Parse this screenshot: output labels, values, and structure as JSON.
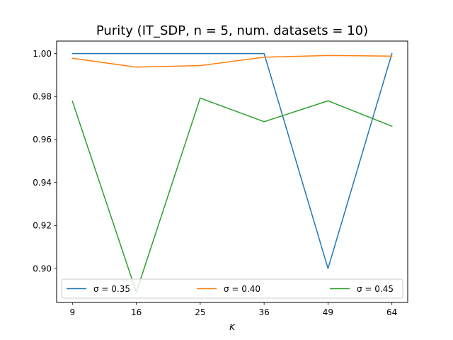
{
  "chart_data": {
    "type": "line",
    "title": "Purity (IT_SDP, n = 5, num. datasets = 10)",
    "xlabel": "K",
    "ylabel": "",
    "x": [
      9,
      16,
      25,
      36,
      49,
      64
    ],
    "x_tick_labels": [
      "9",
      "16",
      "25",
      "36",
      "49",
      "64"
    ],
    "y_ticks": [
      0.9,
      0.92,
      0.94,
      0.96,
      0.98,
      1.0
    ],
    "y_tick_labels": [
      "0.90",
      "0.92",
      "0.94",
      "0.96",
      "0.98",
      "1.00"
    ],
    "ylim": [
      0.8842,
      1.0058
    ],
    "grid": false,
    "legend_position": "lower center",
    "series": [
      {
        "name": "σ = 0.35",
        "color": "#1f77b4",
        "values": [
          1.0,
          1.0,
          1.0,
          1.0,
          0.9,
          1.0
        ]
      },
      {
        "name": "σ = 0.40",
        "color": "#ff7f0e",
        "values": [
          0.9978,
          0.9937,
          0.9944,
          0.9983,
          0.9991,
          0.9988
        ]
      },
      {
        "name": "σ = 0.45",
        "color": "#2ca02c",
        "values": [
          0.9778,
          0.889,
          0.9793,
          0.9683,
          0.978,
          0.9662
        ]
      }
    ]
  }
}
